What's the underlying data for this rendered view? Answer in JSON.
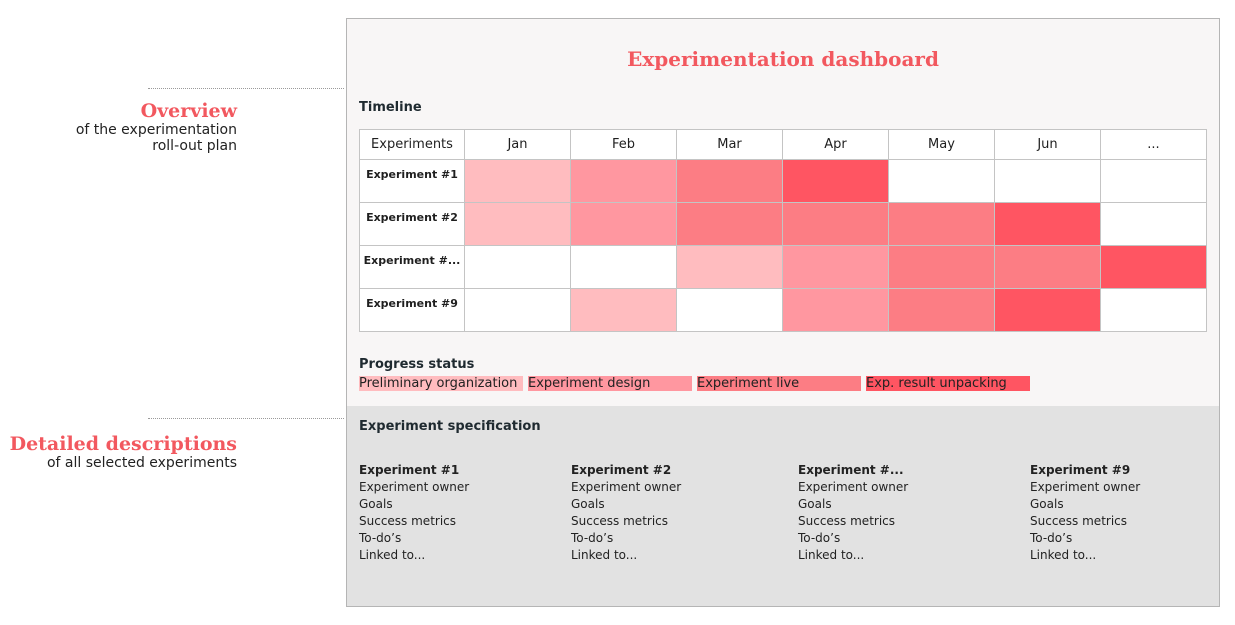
{
  "annotations": [
    {
      "title": "Overview",
      "subtitle_lines": [
        "of the experimentation",
        "roll-out plan"
      ]
    },
    {
      "title": "Detailed descriptions",
      "subtitle_lines": [
        "of all selected experiments"
      ]
    }
  ],
  "dashboard": {
    "title": "Experimentation dashboard",
    "timeline": {
      "label": "Timeline",
      "columns": [
        "Experiments",
        "Jan",
        "Feb",
        "Mar",
        "Apr",
        "May",
        "Jun",
        "..."
      ],
      "rows": [
        {
          "name": "Experiment #1",
          "stages": [
            1,
            2,
            3,
            4,
            0,
            0,
            0
          ]
        },
        {
          "name": "Experiment #2",
          "stages": [
            1,
            2,
            3,
            3,
            3,
            4,
            0
          ]
        },
        {
          "name": "Experiment #...",
          "stages": [
            0,
            0,
            1,
            2,
            3,
            3,
            4
          ]
        },
        {
          "name": "Experiment #9",
          "stages": [
            0,
            1,
            0,
            2,
            3,
            4,
            0
          ]
        }
      ]
    },
    "progress": {
      "label": "Progress status",
      "items": [
        "Preliminary organization",
        "Experiment design",
        "Experiment live",
        "Exp. result unpacking"
      ],
      "colors": [
        "#ffbcbf",
        "#ff97a0",
        "#fc7d84",
        "#ff5562"
      ]
    },
    "specification": {
      "label": "Experiment specification",
      "experiments": [
        {
          "name": "Experiment #1",
          "fields": [
            "Experiment owner",
            "Goals",
            "Success metrics",
            "To-do’s",
            "Linked to..."
          ]
        },
        {
          "name": "Experiment #2",
          "fields": [
            "Experiment owner",
            "Goals",
            "Success metrics",
            "To-do’s",
            "Linked to..."
          ]
        },
        {
          "name": "Experiment #...",
          "fields": [
            "Experiment owner",
            "Goals",
            "Success metrics",
            "To-do’s",
            "Linked to..."
          ]
        },
        {
          "name": "Experiment #9",
          "fields": [
            "Experiment owner",
            "Goals",
            "Success metrics",
            "To-do’s",
            "Linked to..."
          ]
        }
      ]
    }
  },
  "colors": {
    "accent": "#f2585f",
    "spec_background": "#e2e2e2"
  }
}
